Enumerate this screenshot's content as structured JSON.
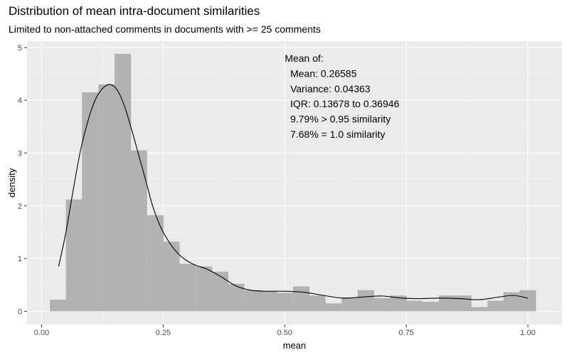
{
  "chart_data": {
    "type": "bar",
    "title": "Distribution of mean intra-document similarities",
    "subtitle": "Limited to non-attached comments in documents with >= 25 comments",
    "xlabel": "mean",
    "ylabel": "density",
    "xlim": [
      -0.03,
      1.07
    ],
    "ylim": [
      -0.25,
      5.12
    ],
    "x_ticks": [
      0,
      0.25,
      0.5,
      0.75,
      1
    ],
    "x_tick_labels": [
      "0.00",
      "0.25",
      "0.50",
      "0.75",
      "1.00"
    ],
    "y_ticks": [
      0,
      1,
      2,
      3,
      4,
      5
    ],
    "y_tick_labels": [
      "0",
      "1",
      "2",
      "3",
      "4",
      "5"
    ],
    "grid": true,
    "histogram": {
      "bin_width": 0.0333,
      "bin_starts": [
        0.017,
        0.05,
        0.083,
        0.117,
        0.15,
        0.183,
        0.217,
        0.25,
        0.283,
        0.317,
        0.35,
        0.383,
        0.417,
        0.45,
        0.483,
        0.517,
        0.55,
        0.583,
        0.617,
        0.65,
        0.683,
        0.717,
        0.75,
        0.783,
        0.817,
        0.85,
        0.883,
        0.917,
        0.95,
        0.983
      ],
      "density": [
        0.22,
        2.12,
        4.15,
        4.3,
        4.88,
        3.05,
        1.82,
        1.32,
        0.9,
        0.85,
        0.75,
        0.52,
        0.4,
        0.38,
        0.35,
        0.47,
        0.3,
        0.15,
        0.26,
        0.4,
        0.25,
        0.3,
        0.2,
        0.18,
        0.3,
        0.3,
        0.08,
        0.2,
        0.36,
        0.4
      ]
    },
    "density_curve": {
      "x": [
        0.035,
        0.05,
        0.065,
        0.08,
        0.095,
        0.11,
        0.125,
        0.14,
        0.155,
        0.17,
        0.185,
        0.2,
        0.215,
        0.23,
        0.25,
        0.28,
        0.31,
        0.34,
        0.37,
        0.4,
        0.43,
        0.46,
        0.5,
        0.54,
        0.58,
        0.62,
        0.66,
        0.7,
        0.74,
        0.78,
        0.82,
        0.86,
        0.9,
        0.94,
        0.97,
        1.0
      ],
      "y": [
        0.85,
        1.5,
        2.3,
        3.05,
        3.6,
        4.0,
        4.22,
        4.3,
        4.2,
        3.9,
        3.45,
        2.95,
        2.45,
        1.95,
        1.5,
        1.1,
        0.9,
        0.8,
        0.65,
        0.48,
        0.4,
        0.38,
        0.38,
        0.36,
        0.3,
        0.25,
        0.27,
        0.29,
        0.25,
        0.24,
        0.25,
        0.24,
        0.22,
        0.27,
        0.3,
        0.25
      ]
    },
    "annotation": [
      "Mean of:",
      "  Mean: 0.26585",
      "  Variance: 0.04363",
      "  IQR: 0.13678 to 0.36946",
      "  9.79% > 0.95 similarity",
      "  7.68% = 1.0 similarity"
    ],
    "colors": {
      "panel_background": "#ebebeb",
      "grid_major": "#ffffff",
      "grid_minor": "#f4f4f4",
      "bar_fill": "#b2b2b2",
      "curve": "#000000",
      "tick_text": "#4d4d4d"
    }
  }
}
